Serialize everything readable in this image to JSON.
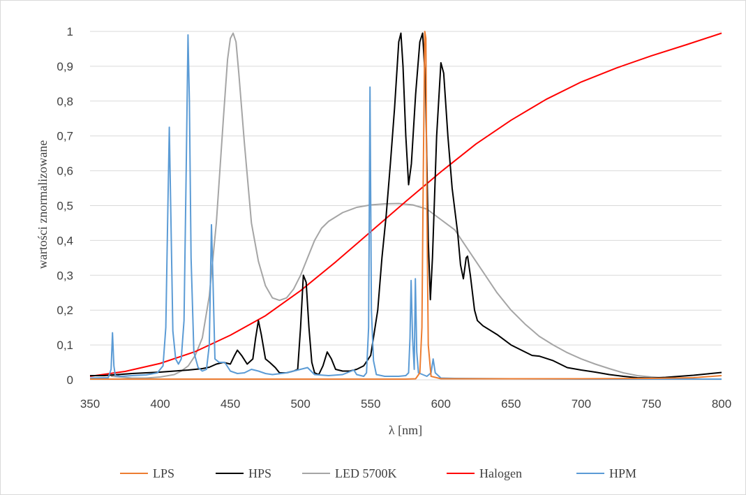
{
  "chart_data": {
    "type": "line",
    "title": "",
    "xlabel": "λ [nm]",
    "ylabel": "wartości znormalizowane",
    "xlim": [
      350,
      800
    ],
    "ylim": [
      0,
      1
    ],
    "xticks": [
      350,
      400,
      450,
      500,
      550,
      600,
      650,
      700,
      750,
      800
    ],
    "yticks": [
      0,
      0.1,
      0.2,
      0.3,
      0.4,
      0.5,
      0.6,
      0.7,
      0.8,
      0.9,
      1
    ],
    "ytick_labels": [
      "0",
      "0,1",
      "0,2",
      "0,3",
      "0,4",
      "0,5",
      "0,6",
      "0,7",
      "0,8",
      "0,9",
      "1"
    ],
    "grid": "horizontal",
    "legend_position": "bottom",
    "series": [
      {
        "name": "LPS",
        "color": "#ED7D31",
        "points": [
          [
            350,
            0.002
          ],
          [
            400,
            0.002
          ],
          [
            450,
            0.002
          ],
          [
            500,
            0.002
          ],
          [
            550,
            0.002
          ],
          [
            575,
            0.002
          ],
          [
            582,
            0.003
          ],
          [
            585,
            0.02
          ],
          [
            586.5,
            0.15
          ],
          [
            587.5,
            0.6
          ],
          [
            588.5,
            1.0
          ],
          [
            589.3,
            0.98
          ],
          [
            590,
            0.5
          ],
          [
            591,
            0.1
          ],
          [
            593,
            0.01
          ],
          [
            600,
            0.003
          ],
          [
            650,
            0.003
          ],
          [
            700,
            0.003
          ],
          [
            750,
            0.004
          ],
          [
            780,
            0.006
          ],
          [
            800,
            0.012
          ]
        ]
      },
      {
        "name": "HPS",
        "color": "#000000",
        "points": [
          [
            350,
            0.012
          ],
          [
            360,
            0.012
          ],
          [
            370,
            0.015
          ],
          [
            380,
            0.018
          ],
          [
            390,
            0.02
          ],
          [
            400,
            0.022
          ],
          [
            410,
            0.025
          ],
          [
            420,
            0.028
          ],
          [
            430,
            0.032
          ],
          [
            435,
            0.036
          ],
          [
            440,
            0.045
          ],
          [
            445,
            0.05
          ],
          [
            450,
            0.045
          ],
          [
            453,
            0.07
          ],
          [
            455,
            0.085
          ],
          [
            458,
            0.07
          ],
          [
            462,
            0.045
          ],
          [
            466,
            0.06
          ],
          [
            468,
            0.12
          ],
          [
            470,
            0.17
          ],
          [
            472,
            0.13
          ],
          [
            475,
            0.06
          ],
          [
            478,
            0.05
          ],
          [
            482,
            0.035
          ],
          [
            485,
            0.02
          ],
          [
            490,
            0.02
          ],
          [
            495,
            0.025
          ],
          [
            498,
            0.03
          ],
          [
            500,
            0.15
          ],
          [
            502,
            0.3
          ],
          [
            504,
            0.28
          ],
          [
            506,
            0.15
          ],
          [
            508,
            0.05
          ],
          [
            510,
            0.02
          ],
          [
            513,
            0.015
          ],
          [
            516,
            0.04
          ],
          [
            519,
            0.08
          ],
          [
            522,
            0.06
          ],
          [
            525,
            0.03
          ],
          [
            530,
            0.025
          ],
          [
            535,
            0.025
          ],
          [
            540,
            0.03
          ],
          [
            545,
            0.04
          ],
          [
            550,
            0.07
          ],
          [
            555,
            0.2
          ],
          [
            558,
            0.35
          ],
          [
            561,
            0.47
          ],
          [
            564,
            0.62
          ],
          [
            567,
            0.78
          ],
          [
            570,
            0.97
          ],
          [
            571.5,
            0.995
          ],
          [
            573,
            0.9
          ],
          [
            575,
            0.7
          ],
          [
            577,
            0.56
          ],
          [
            579,
            0.62
          ],
          [
            582,
            0.82
          ],
          [
            585,
            0.97
          ],
          [
            587,
            0.995
          ],
          [
            589,
            0.85
          ],
          [
            591,
            0.4
          ],
          [
            592.5,
            0.23
          ],
          [
            594,
            0.35
          ],
          [
            597,
            0.7
          ],
          [
            600,
            0.91
          ],
          [
            602,
            0.88
          ],
          [
            605,
            0.7
          ],
          [
            608,
            0.55
          ],
          [
            612,
            0.42
          ],
          [
            614,
            0.33
          ],
          [
            616,
            0.29
          ],
          [
            618,
            0.35
          ],
          [
            619,
            0.355
          ],
          [
            621,
            0.3
          ],
          [
            624,
            0.2
          ],
          [
            626,
            0.17
          ],
          [
            630,
            0.155
          ],
          [
            640,
            0.13
          ],
          [
            650,
            0.1
          ],
          [
            660,
            0.08
          ],
          [
            665,
            0.07
          ],
          [
            670,
            0.068
          ],
          [
            680,
            0.055
          ],
          [
            690,
            0.035
          ],
          [
            700,
            0.028
          ],
          [
            710,
            0.022
          ],
          [
            720,
            0.015
          ],
          [
            730,
            0.01
          ],
          [
            740,
            0.006
          ],
          [
            750,
            0.005
          ],
          [
            760,
            0.007
          ],
          [
            770,
            0.01
          ],
          [
            780,
            0.013
          ],
          [
            790,
            0.017
          ],
          [
            800,
            0.021
          ]
        ]
      },
      {
        "name": "LED 5700K",
        "color": "#A5A5A5",
        "points": [
          [
            365,
            0.01
          ],
          [
            380,
            0.005
          ],
          [
            390,
            0.005
          ],
          [
            400,
            0.008
          ],
          [
            410,
            0.015
          ],
          [
            415,
            0.025
          ],
          [
            420,
            0.04
          ],
          [
            425,
            0.07
          ],
          [
            430,
            0.12
          ],
          [
            435,
            0.24
          ],
          [
            440,
            0.45
          ],
          [
            445,
            0.75
          ],
          [
            448,
            0.92
          ],
          [
            450,
            0.98
          ],
          [
            452,
            0.995
          ],
          [
            454,
            0.97
          ],
          [
            456,
            0.88
          ],
          [
            460,
            0.68
          ],
          [
            465,
            0.45
          ],
          [
            470,
            0.34
          ],
          [
            475,
            0.27
          ],
          [
            480,
            0.235
          ],
          [
            485,
            0.228
          ],
          [
            490,
            0.235
          ],
          [
            495,
            0.26
          ],
          [
            500,
            0.3
          ],
          [
            505,
            0.35
          ],
          [
            510,
            0.4
          ],
          [
            515,
            0.435
          ],
          [
            520,
            0.455
          ],
          [
            530,
            0.48
          ],
          [
            540,
            0.495
          ],
          [
            550,
            0.502
          ],
          [
            560,
            0.505
          ],
          [
            570,
            0.506
          ],
          [
            580,
            0.502
          ],
          [
            590,
            0.49
          ],
          [
            600,
            0.46
          ],
          [
            610,
            0.43
          ],
          [
            620,
            0.37
          ],
          [
            630,
            0.31
          ],
          [
            640,
            0.25
          ],
          [
            650,
            0.2
          ],
          [
            660,
            0.16
          ],
          [
            670,
            0.125
          ],
          [
            680,
            0.1
          ],
          [
            690,
            0.078
          ],
          [
            700,
            0.06
          ],
          [
            710,
            0.045
          ],
          [
            720,
            0.032
          ],
          [
            730,
            0.02
          ],
          [
            740,
            0.012
          ],
          [
            750,
            0.008
          ],
          [
            760,
            0.005
          ],
          [
            770,
            0.004
          ],
          [
            780,
            0.003
          ]
        ]
      },
      {
        "name": "Halogen",
        "color": "#FF0000",
        "points": [
          [
            350,
            0.01
          ],
          [
            375,
            0.024
          ],
          [
            400,
            0.047
          ],
          [
            425,
            0.081
          ],
          [
            450,
            0.128
          ],
          [
            475,
            0.184
          ],
          [
            500,
            0.256
          ],
          [
            525,
            0.338
          ],
          [
            550,
            0.425
          ],
          [
            575,
            0.512
          ],
          [
            600,
            0.597
          ],
          [
            625,
            0.677
          ],
          [
            650,
            0.745
          ],
          [
            675,
            0.805
          ],
          [
            700,
            0.855
          ],
          [
            725,
            0.895
          ],
          [
            750,
            0.93
          ],
          [
            775,
            0.962
          ],
          [
            800,
            0.995
          ]
        ]
      },
      {
        "name": "HPM",
        "color": "#5B9BD5",
        "points": [
          [
            350,
            0.005
          ],
          [
            363,
            0.006
          ],
          [
            365,
            0.03
          ],
          [
            366,
            0.135
          ],
          [
            367,
            0.04
          ],
          [
            368,
            0.012
          ],
          [
            372,
            0.01
          ],
          [
            380,
            0.012
          ],
          [
            390,
            0.014
          ],
          [
            398,
            0.02
          ],
          [
            402,
            0.04
          ],
          [
            404,
            0.15
          ],
          [
            405.5,
            0.5
          ],
          [
            406.5,
            0.725
          ],
          [
            407.5,
            0.5
          ],
          [
            409,
            0.14
          ],
          [
            411,
            0.06
          ],
          [
            413,
            0.045
          ],
          [
            415,
            0.06
          ],
          [
            417,
            0.17
          ],
          [
            418.5,
            0.6
          ],
          [
            419.8,
            0.99
          ],
          [
            420.8,
            0.8
          ],
          [
            422,
            0.35
          ],
          [
            424,
            0.08
          ],
          [
            427,
            0.035
          ],
          [
            430,
            0.025
          ],
          [
            433,
            0.03
          ],
          [
            435,
            0.1
          ],
          [
            436.5,
            0.445
          ],
          [
            437.5,
            0.3
          ],
          [
            439,
            0.06
          ],
          [
            442,
            0.05
          ],
          [
            446,
            0.05
          ],
          [
            450,
            0.025
          ],
          [
            455,
            0.018
          ],
          [
            460,
            0.02
          ],
          [
            465,
            0.03
          ],
          [
            470,
            0.025
          ],
          [
            475,
            0.018
          ],
          [
            480,
            0.015
          ],
          [
            490,
            0.02
          ],
          [
            495,
            0.025
          ],
          [
            500,
            0.03
          ],
          [
            505,
            0.035
          ],
          [
            510,
            0.015
          ],
          [
            520,
            0.012
          ],
          [
            530,
            0.015
          ],
          [
            538,
            0.028
          ],
          [
            540,
            0.015
          ],
          [
            545,
            0.01
          ],
          [
            547,
            0.02
          ],
          [
            548.5,
            0.15
          ],
          [
            549.5,
            0.84
          ],
          [
            550.5,
            0.2
          ],
          [
            552,
            0.055
          ],
          [
            554,
            0.015
          ],
          [
            560,
            0.01
          ],
          [
            570,
            0.01
          ],
          [
            575,
            0.012
          ],
          [
            577,
            0.02
          ],
          [
            578,
            0.12
          ],
          [
            578.8,
            0.285
          ],
          [
            579.8,
            0.12
          ],
          [
            581,
            0.03
          ],
          [
            581.8,
            0.29
          ],
          [
            582.8,
            0.08
          ],
          [
            584,
            0.02
          ],
          [
            590,
            0.01
          ],
          [
            593,
            0.02
          ],
          [
            594.5,
            0.06
          ],
          [
            596,
            0.02
          ],
          [
            600,
            0.005
          ],
          [
            610,
            0.004
          ],
          [
            650,
            0.003
          ],
          [
            700,
            0.002
          ],
          [
            750,
            0.002
          ],
          [
            800,
            0.002
          ]
        ]
      }
    ]
  }
}
